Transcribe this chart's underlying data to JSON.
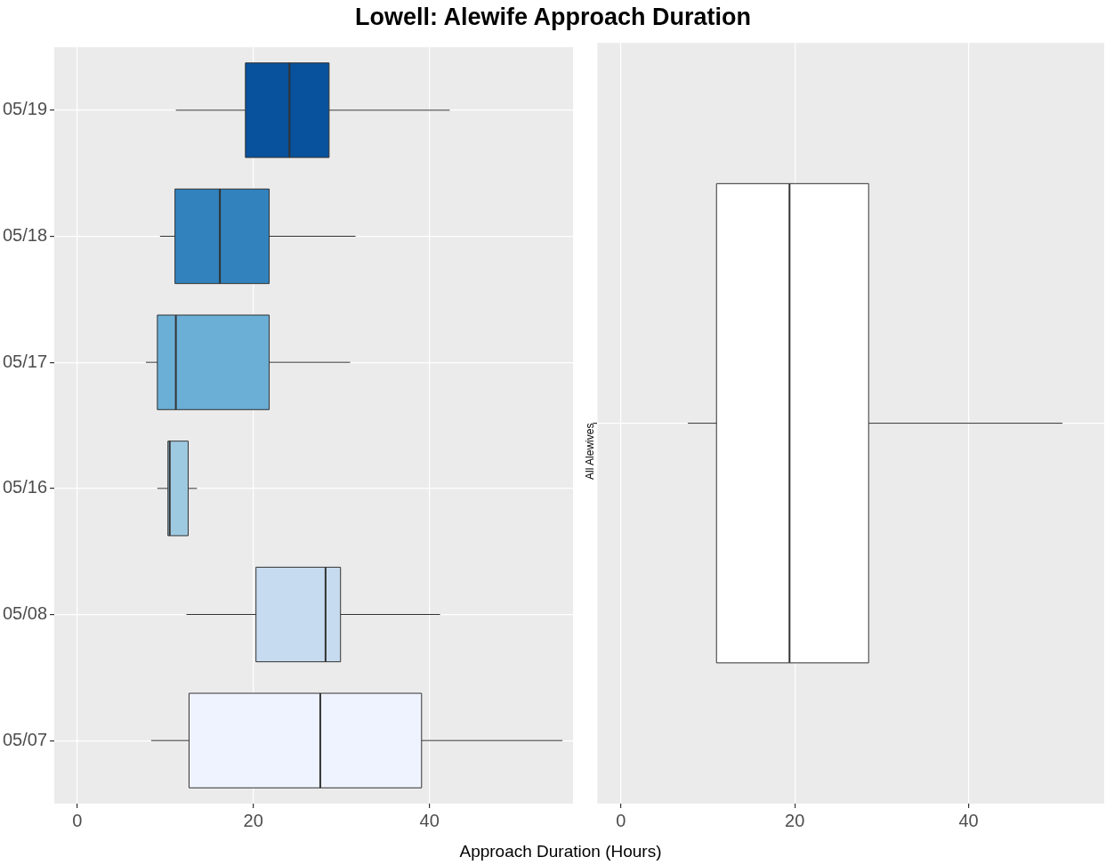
{
  "chart_data": [
    {
      "type": "box",
      "title": "Lowell: Alewife Approach Duration",
      "xlabel": "Approach Duration (Hours)",
      "orientation": "horizontal",
      "categories": [
        "05/19",
        "05/18",
        "05/17",
        "05/16",
        "05/08",
        "05/07"
      ],
      "colors": [
        "#08519c",
        "#3182bd",
        "#6baed6",
        "#9ecae1",
        "#c6dbef",
        "#eff3ff"
      ],
      "boxes": [
        {
          "low": 11.2,
          "q1": 19.1,
          "median": 24.1,
          "q3": 28.6,
          "high": 42.3
        },
        {
          "low": 9.4,
          "q1": 11.1,
          "median": 16.2,
          "q3": 21.8,
          "high": 31.6
        },
        {
          "low": 7.8,
          "q1": 9.1,
          "median": 11.2,
          "q3": 21.8,
          "high": 31.0
        },
        {
          "low": 9.1,
          "q1": 10.3,
          "median": 10.5,
          "q3": 12.6,
          "high": 13.6
        },
        {
          "low": 12.4,
          "q1": 20.3,
          "median": 28.2,
          "q3": 29.9,
          "high": 41.2
        },
        {
          "low": 8.4,
          "q1": 12.7,
          "median": 27.6,
          "q3": 39.1,
          "high": 55.1
        }
      ],
      "xlim": [
        -2.6,
        56.3
      ],
      "xticks": [
        0,
        20,
        40
      ],
      "grid": true
    },
    {
      "type": "box",
      "orientation": "horizontal",
      "categories": [
        "All Alewives"
      ],
      "colors": [
        "#ffffff"
      ],
      "boxes": [
        {
          "low": 7.7,
          "q1": 11.0,
          "median": 19.4,
          "q3": 28.5,
          "high": 50.8
        }
      ],
      "xlim": [
        -2.7,
        55.6
      ],
      "xticks": [
        0,
        20,
        40
      ],
      "grid": true
    }
  ]
}
